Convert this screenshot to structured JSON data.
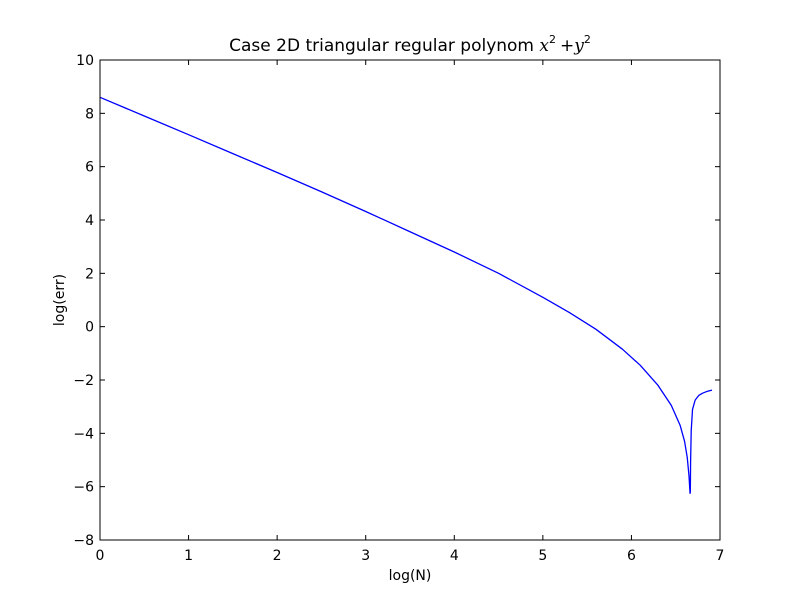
{
  "chart_data": {
    "type": "line",
    "title": "Case 2D triangular regular polynom x² +y²",
    "title_text": "Case 2D triangular regular polynom ",
    "title_math": {
      "base1": "x",
      "sup1": "2",
      "plus": "+",
      "base2": "y",
      "sup2": "2"
    },
    "xlabel": "log(N)",
    "ylabel": "log(err)",
    "xlim": [
      0,
      7
    ],
    "ylim": [
      -8,
      10
    ],
    "xticks": [
      0,
      1,
      2,
      3,
      4,
      5,
      6,
      7
    ],
    "yticks": [
      -8,
      -6,
      -4,
      -2,
      0,
      2,
      4,
      6,
      8,
      10
    ],
    "xtick_labels": [
      "0",
      "1",
      "2",
      "3",
      "4",
      "5",
      "6",
      "7"
    ],
    "ytick_labels": [
      "−8",
      "−6",
      "−4",
      "−2",
      "0",
      "2",
      "4",
      "6",
      "8",
      "10"
    ],
    "grid": false,
    "series": [
      {
        "color": "#0000ff",
        "x": [
          0,
          0.5,
          1,
          1.5,
          2,
          2.5,
          3,
          3.5,
          4,
          4.5,
          5,
          5.3,
          5.6,
          5.9,
          6.1,
          6.3,
          6.45,
          6.55,
          6.6,
          6.63,
          6.65,
          6.662,
          6.665,
          6.668,
          6.675,
          6.69,
          6.72,
          6.76,
          6.8,
          6.86,
          6.91
        ],
        "y": [
          8.6,
          7.9,
          7.2,
          6.49,
          5.78,
          5.06,
          4.32,
          3.56,
          2.8,
          2.0,
          1.1,
          0.53,
          -0.1,
          -0.85,
          -1.45,
          -2.2,
          -2.95,
          -3.7,
          -4.3,
          -4.9,
          -5.6,
          -6.25,
          -6.2,
          -5.1,
          -3.9,
          -3.1,
          -2.75,
          -2.58,
          -2.5,
          -2.42,
          -2.38
        ]
      }
    ]
  }
}
